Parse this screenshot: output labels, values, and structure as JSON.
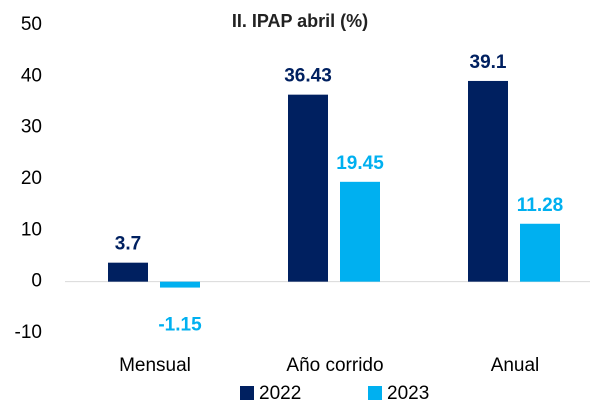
{
  "chart_data": {
    "type": "bar",
    "title": "II. IPAP abril (%)",
    "categories": [
      "Mensual",
      "Año corrido",
      "Anual"
    ],
    "series": [
      {
        "name": "2022",
        "color": "#002060",
        "values": [
          3.7,
          36.43,
          39.1
        ]
      },
      {
        "name": "2023",
        "color": "#00b0f0",
        "values": [
          -1.15,
          19.45,
          11.28
        ]
      }
    ],
    "ylim": [
      -10,
      50
    ],
    "yticks": [
      -10,
      0,
      10,
      20,
      30,
      40,
      50
    ],
    "grid": false,
    "legend": "bottom"
  }
}
